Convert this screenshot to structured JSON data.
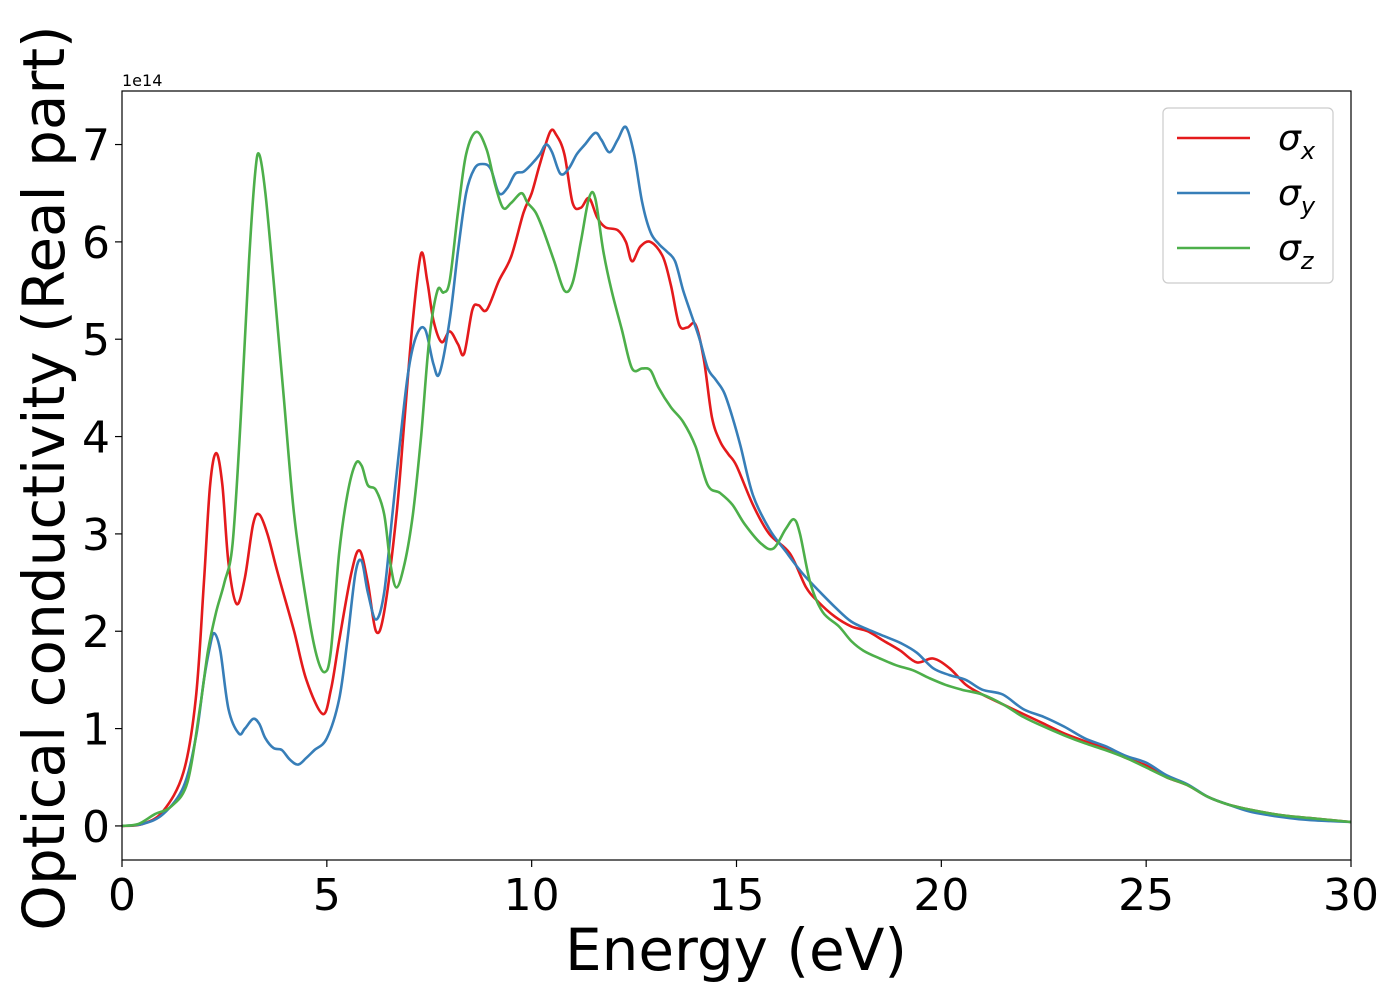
{
  "chart_data": {
    "type": "line",
    "title": "",
    "xlabel": "Energy (eV)",
    "ylabel": "Optical conductivity (Real part)",
    "y_offset_label": "1e14",
    "xlim": [
      0,
      30
    ],
    "ylim": [
      -0.35,
      7.55
    ],
    "xticks": [
      0,
      5,
      10,
      15,
      20,
      25,
      30
    ],
    "yticks": [
      0,
      1,
      2,
      3,
      4,
      5,
      6,
      7
    ],
    "grid": false,
    "legend_position": "top-right",
    "series": [
      {
        "name": "σx",
        "symbol": "σ",
        "subscript": "x",
        "color": "#e41a1c",
        "points": [
          [
            0,
            0
          ],
          [
            0.5,
            0.02
          ],
          [
            1,
            0.15
          ],
          [
            1.5,
            0.55
          ],
          [
            1.8,
            1.3
          ],
          [
            2.0,
            2.5
          ],
          [
            2.15,
            3.5
          ],
          [
            2.3,
            3.83
          ],
          [
            2.45,
            3.5
          ],
          [
            2.6,
            2.7
          ],
          [
            2.8,
            2.28
          ],
          [
            3.0,
            2.55
          ],
          [
            3.2,
            3.1
          ],
          [
            3.35,
            3.2
          ],
          [
            3.55,
            3.0
          ],
          [
            3.8,
            2.6
          ],
          [
            4.2,
            2.0
          ],
          [
            4.5,
            1.5
          ],
          [
            4.9,
            1.15
          ],
          [
            5.1,
            1.4
          ],
          [
            5.3,
            1.9
          ],
          [
            5.6,
            2.6
          ],
          [
            5.8,
            2.83
          ],
          [
            6.0,
            2.5
          ],
          [
            6.2,
            2.0
          ],
          [
            6.4,
            2.2
          ],
          [
            6.7,
            3.2
          ],
          [
            6.9,
            4.2
          ],
          [
            7.1,
            5.2
          ],
          [
            7.3,
            5.88
          ],
          [
            7.45,
            5.6
          ],
          [
            7.6,
            5.2
          ],
          [
            7.8,
            4.97
          ],
          [
            8.0,
            5.08
          ],
          [
            8.2,
            4.95
          ],
          [
            8.35,
            4.85
          ],
          [
            8.55,
            5.3
          ],
          [
            8.7,
            5.35
          ],
          [
            8.9,
            5.3
          ],
          [
            9.2,
            5.6
          ],
          [
            9.5,
            5.85
          ],
          [
            9.8,
            6.3
          ],
          [
            10.0,
            6.5
          ],
          [
            10.2,
            6.8
          ],
          [
            10.45,
            7.13
          ],
          [
            10.6,
            7.1
          ],
          [
            10.8,
            6.9
          ],
          [
            11.0,
            6.4
          ],
          [
            11.2,
            6.35
          ],
          [
            11.4,
            6.45
          ],
          [
            11.6,
            6.25
          ],
          [
            11.8,
            6.15
          ],
          [
            12.1,
            6.12
          ],
          [
            12.3,
            6.0
          ],
          [
            12.45,
            5.8
          ],
          [
            12.65,
            5.95
          ],
          [
            12.9,
            6.0
          ],
          [
            13.2,
            5.85
          ],
          [
            13.4,
            5.55
          ],
          [
            13.6,
            5.15
          ],
          [
            13.8,
            5.12
          ],
          [
            14.0,
            5.15
          ],
          [
            14.2,
            4.8
          ],
          [
            14.4,
            4.2
          ],
          [
            14.6,
            3.95
          ],
          [
            14.8,
            3.82
          ],
          [
            15.0,
            3.7
          ],
          [
            15.4,
            3.3
          ],
          [
            15.8,
            3.0
          ],
          [
            16.3,
            2.8
          ],
          [
            16.7,
            2.45
          ],
          [
            17.0,
            2.3
          ],
          [
            17.4,
            2.15
          ],
          [
            17.8,
            2.05
          ],
          [
            18.2,
            2.0
          ],
          [
            18.6,
            1.9
          ],
          [
            19.0,
            1.8
          ],
          [
            19.4,
            1.68
          ],
          [
            19.8,
            1.72
          ],
          [
            20.2,
            1.62
          ],
          [
            20.6,
            1.45
          ],
          [
            21.0,
            1.35
          ],
          [
            21.5,
            1.25
          ],
          [
            22.0,
            1.15
          ],
          [
            22.5,
            1.05
          ],
          [
            23.0,
            0.95
          ],
          [
            23.5,
            0.87
          ],
          [
            24.0,
            0.8
          ],
          [
            24.5,
            0.7
          ],
          [
            25.0,
            0.62
          ],
          [
            25.5,
            0.5
          ],
          [
            26.0,
            0.42
          ],
          [
            26.5,
            0.3
          ],
          [
            27.0,
            0.22
          ],
          [
            27.5,
            0.17
          ],
          [
            28.0,
            0.13
          ],
          [
            28.5,
            0.1
          ],
          [
            29.0,
            0.08
          ],
          [
            29.5,
            0.06
          ],
          [
            30,
            0.04
          ]
        ]
      },
      {
        "name": "σy",
        "symbol": "σ",
        "subscript": "y",
        "color": "#377eb8",
        "points": [
          [
            0,
            0
          ],
          [
            0.5,
            0.02
          ],
          [
            1,
            0.12
          ],
          [
            1.5,
            0.4
          ],
          [
            1.8,
            0.9
          ],
          [
            2.0,
            1.5
          ],
          [
            2.15,
            1.85
          ],
          [
            2.25,
            1.98
          ],
          [
            2.4,
            1.8
          ],
          [
            2.6,
            1.2
          ],
          [
            2.85,
            0.95
          ],
          [
            3.0,
            1.0
          ],
          [
            3.2,
            1.1
          ],
          [
            3.35,
            1.05
          ],
          [
            3.5,
            0.9
          ],
          [
            3.7,
            0.8
          ],
          [
            3.9,
            0.78
          ],
          [
            4.1,
            0.68
          ],
          [
            4.3,
            0.63
          ],
          [
            4.5,
            0.7
          ],
          [
            4.7,
            0.78
          ],
          [
            5.0,
            0.9
          ],
          [
            5.3,
            1.3
          ],
          [
            5.5,
            1.9
          ],
          [
            5.7,
            2.6
          ],
          [
            5.85,
            2.72
          ],
          [
            6.0,
            2.4
          ],
          [
            6.2,
            2.12
          ],
          [
            6.4,
            2.4
          ],
          [
            6.6,
            3.2
          ],
          [
            6.8,
            4.0
          ],
          [
            7.0,
            4.7
          ],
          [
            7.2,
            5.05
          ],
          [
            7.4,
            5.1
          ],
          [
            7.6,
            4.75
          ],
          [
            7.75,
            4.65
          ],
          [
            8.0,
            5.2
          ],
          [
            8.2,
            5.9
          ],
          [
            8.4,
            6.5
          ],
          [
            8.6,
            6.75
          ],
          [
            8.8,
            6.8
          ],
          [
            9.0,
            6.75
          ],
          [
            9.2,
            6.5
          ],
          [
            9.4,
            6.55
          ],
          [
            9.6,
            6.7
          ],
          [
            9.8,
            6.72
          ],
          [
            10.0,
            6.8
          ],
          [
            10.2,
            6.9
          ],
          [
            10.35,
            7.0
          ],
          [
            10.5,
            6.92
          ],
          [
            10.7,
            6.7
          ],
          [
            10.9,
            6.75
          ],
          [
            11.1,
            6.9
          ],
          [
            11.3,
            7.0
          ],
          [
            11.55,
            7.12
          ],
          [
            11.7,
            7.05
          ],
          [
            11.9,
            6.92
          ],
          [
            12.1,
            7.05
          ],
          [
            12.3,
            7.18
          ],
          [
            12.5,
            6.9
          ],
          [
            12.7,
            6.4
          ],
          [
            12.9,
            6.1
          ],
          [
            13.1,
            5.98
          ],
          [
            13.3,
            5.9
          ],
          [
            13.5,
            5.8
          ],
          [
            13.7,
            5.5
          ],
          [
            13.9,
            5.25
          ],
          [
            14.1,
            5.0
          ],
          [
            14.3,
            4.7
          ],
          [
            14.5,
            4.58
          ],
          [
            14.7,
            4.45
          ],
          [
            14.9,
            4.2
          ],
          [
            15.1,
            3.9
          ],
          [
            15.4,
            3.4
          ],
          [
            15.8,
            3.05
          ],
          [
            16.2,
            2.82
          ],
          [
            16.6,
            2.6
          ],
          [
            17.0,
            2.42
          ],
          [
            17.4,
            2.25
          ],
          [
            17.8,
            2.1
          ],
          [
            18.2,
            2.02
          ],
          [
            18.6,
            1.95
          ],
          [
            19.0,
            1.88
          ],
          [
            19.4,
            1.78
          ],
          [
            19.8,
            1.62
          ],
          [
            20.2,
            1.55
          ],
          [
            20.6,
            1.5
          ],
          [
            21.0,
            1.4
          ],
          [
            21.5,
            1.35
          ],
          [
            22.0,
            1.2
          ],
          [
            22.5,
            1.12
          ],
          [
            23.0,
            1.02
          ],
          [
            23.5,
            0.9
          ],
          [
            24.0,
            0.82
          ],
          [
            24.5,
            0.72
          ],
          [
            25.0,
            0.65
          ],
          [
            25.5,
            0.52
          ],
          [
            26.0,
            0.43
          ],
          [
            26.5,
            0.3
          ],
          [
            27.0,
            0.22
          ],
          [
            27.5,
            0.15
          ],
          [
            28.0,
            0.11
          ],
          [
            28.5,
            0.08
          ],
          [
            29.0,
            0.06
          ],
          [
            29.5,
            0.05
          ],
          [
            30,
            0.04
          ]
        ]
      },
      {
        "name": "σz",
        "symbol": "σ",
        "subscript": "z",
        "color": "#4daf4a",
        "points": [
          [
            0,
            0
          ],
          [
            0.4,
            0.02
          ],
          [
            0.8,
            0.12
          ],
          [
            1.2,
            0.2
          ],
          [
            1.6,
            0.45
          ],
          [
            1.9,
            1.2
          ],
          [
            2.1,
            1.8
          ],
          [
            2.3,
            2.2
          ],
          [
            2.5,
            2.5
          ],
          [
            2.7,
            2.9
          ],
          [
            2.9,
            4.2
          ],
          [
            3.1,
            5.8
          ],
          [
            3.25,
            6.7
          ],
          [
            3.35,
            6.9
          ],
          [
            3.5,
            6.5
          ],
          [
            3.7,
            5.6
          ],
          [
            3.95,
            4.4
          ],
          [
            4.2,
            3.2
          ],
          [
            4.5,
            2.3
          ],
          [
            4.75,
            1.75
          ],
          [
            4.95,
            1.58
          ],
          [
            5.1,
            1.8
          ],
          [
            5.3,
            2.8
          ],
          [
            5.5,
            3.4
          ],
          [
            5.7,
            3.72
          ],
          [
            5.85,
            3.7
          ],
          [
            6.0,
            3.5
          ],
          [
            6.2,
            3.45
          ],
          [
            6.4,
            3.2
          ],
          [
            6.55,
            2.7
          ],
          [
            6.7,
            2.45
          ],
          [
            6.9,
            2.7
          ],
          [
            7.1,
            3.2
          ],
          [
            7.3,
            4.0
          ],
          [
            7.5,
            5.0
          ],
          [
            7.7,
            5.5
          ],
          [
            7.85,
            5.48
          ],
          [
            8.0,
            5.6
          ],
          [
            8.2,
            6.3
          ],
          [
            8.4,
            6.9
          ],
          [
            8.65,
            7.13
          ],
          [
            8.9,
            6.95
          ],
          [
            9.1,
            6.6
          ],
          [
            9.3,
            6.35
          ],
          [
            9.5,
            6.4
          ],
          [
            9.75,
            6.5
          ],
          [
            9.9,
            6.4
          ],
          [
            10.1,
            6.3
          ],
          [
            10.3,
            6.1
          ],
          [
            10.55,
            5.8
          ],
          [
            10.8,
            5.5
          ],
          [
            11.0,
            5.58
          ],
          [
            11.2,
            6.0
          ],
          [
            11.4,
            6.45
          ],
          [
            11.55,
            6.45
          ],
          [
            11.75,
            5.9
          ],
          [
            11.95,
            5.5
          ],
          [
            12.2,
            5.1
          ],
          [
            12.45,
            4.7
          ],
          [
            12.7,
            4.7
          ],
          [
            12.9,
            4.68
          ],
          [
            13.1,
            4.5
          ],
          [
            13.4,
            4.3
          ],
          [
            13.7,
            4.15
          ],
          [
            14.0,
            3.9
          ],
          [
            14.3,
            3.5
          ],
          [
            14.6,
            3.42
          ],
          [
            14.9,
            3.3
          ],
          [
            15.2,
            3.1
          ],
          [
            15.6,
            2.9
          ],
          [
            15.9,
            2.85
          ],
          [
            16.2,
            3.05
          ],
          [
            16.4,
            3.15
          ],
          [
            16.55,
            3.0
          ],
          [
            16.8,
            2.5
          ],
          [
            17.1,
            2.2
          ],
          [
            17.5,
            2.05
          ],
          [
            17.8,
            1.9
          ],
          [
            18.1,
            1.8
          ],
          [
            18.5,
            1.72
          ],
          [
            18.9,
            1.65
          ],
          [
            19.3,
            1.6
          ],
          [
            19.7,
            1.52
          ],
          [
            20.1,
            1.45
          ],
          [
            20.5,
            1.4
          ],
          [
            21.0,
            1.35
          ],
          [
            21.5,
            1.25
          ],
          [
            22.0,
            1.12
          ],
          [
            22.5,
            1.02
          ],
          [
            23.0,
            0.93
          ],
          [
            23.5,
            0.85
          ],
          [
            24.0,
            0.78
          ],
          [
            24.5,
            0.7
          ],
          [
            25.0,
            0.6
          ],
          [
            25.5,
            0.5
          ],
          [
            26.0,
            0.42
          ],
          [
            26.5,
            0.3
          ],
          [
            27.0,
            0.22
          ],
          [
            27.5,
            0.17
          ],
          [
            28.0,
            0.13
          ],
          [
            28.5,
            0.1
          ],
          [
            29.0,
            0.08
          ],
          [
            29.5,
            0.06
          ],
          [
            30,
            0.04
          ]
        ]
      }
    ]
  }
}
